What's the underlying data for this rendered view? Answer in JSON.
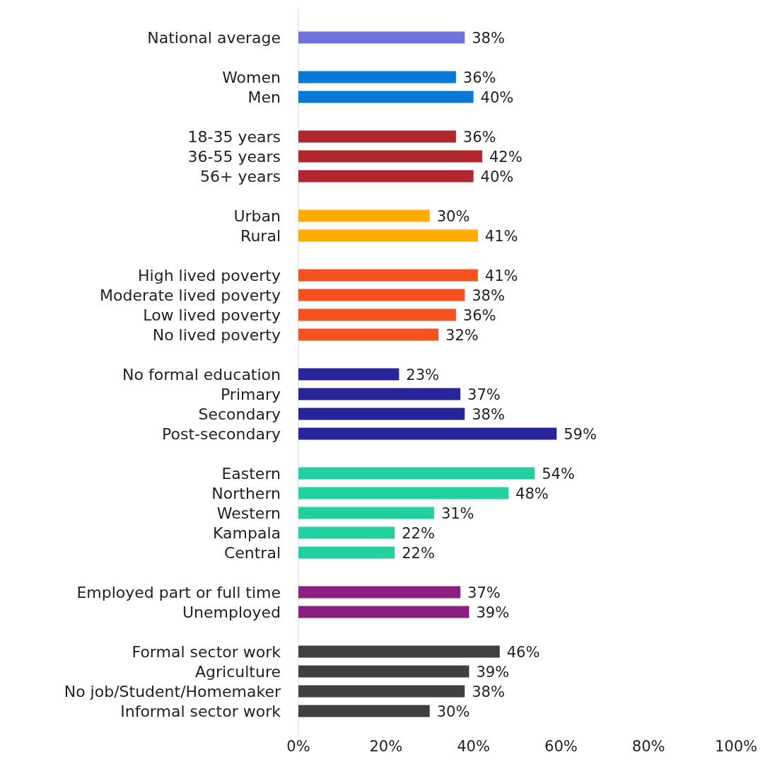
{
  "chart_data": {
    "type": "bar",
    "orientation": "horizontal",
    "categories": [
      "National average",
      null,
      "Women",
      "Men",
      null,
      "18-35 years",
      "36-55 years",
      "56+ years",
      null,
      "Urban",
      "Rural",
      null,
      "High lived poverty",
      "Moderate lived poverty",
      "Low lived poverty",
      "No lived poverty",
      null,
      "No formal education",
      "Primary",
      "Secondary",
      "Post-secondary",
      null,
      "Eastern",
      "Northern",
      "Western",
      "Kampala",
      "Central",
      null,
      "Employed part or full time",
      "Unemployed",
      null,
      "Formal sector work",
      "Agriculture",
      "No job/Student/Homemaker",
      "Informal sector work"
    ],
    "values": [
      38,
      null,
      36,
      40,
      null,
      36,
      42,
      40,
      null,
      30,
      41,
      null,
      41,
      38,
      36,
      32,
      null,
      23,
      37,
      38,
      59,
      null,
      54,
      48,
      31,
      22,
      22,
      null,
      37,
      39,
      null,
      46,
      39,
      38,
      30
    ],
    "value_labels": [
      "38%",
      null,
      "36%",
      "40%",
      null,
      "36%",
      "42%",
      "40%",
      null,
      "30%",
      "41%",
      null,
      "41%",
      "38%",
      "36%",
      "32%",
      null,
      "23%",
      "37%",
      "38%",
      "59%",
      null,
      "54%",
      "48%",
      "31%",
      "22%",
      "22%",
      null,
      "37%",
      "39%",
      null,
      "46%",
      "39%",
      "38%",
      "30%"
    ],
    "colors": [
      "#7272dc",
      null,
      "#0a78d6",
      "#0a78d6",
      null,
      "#b0282d",
      "#b0282d",
      "#b0282d",
      null,
      "#ffab00",
      "#ffab00",
      null,
      "#f4511e",
      "#f4511e",
      "#f4511e",
      "#f4511e",
      null,
      "#28249a",
      "#28249a",
      "#28249a",
      "#28249a",
      null,
      "#22cf9f",
      "#22cf9f",
      "#22cf9f",
      "#22cf9f",
      "#22cf9f",
      null,
      "#8a1f7d",
      "#8a1f7d",
      null,
      "#404040",
      "#404040",
      "#404040",
      "#404040"
    ],
    "xlim": [
      0,
      100
    ],
    "xticks": [
      {
        "value": 0,
        "label": "0%"
      },
      {
        "value": 20,
        "label": "20%"
      },
      {
        "value": 40,
        "label": "40%"
      },
      {
        "value": 60,
        "label": "60%"
      },
      {
        "value": 80,
        "label": "80%"
      },
      {
        "value": 100,
        "label": "100%"
      }
    ],
    "grid": false
  }
}
